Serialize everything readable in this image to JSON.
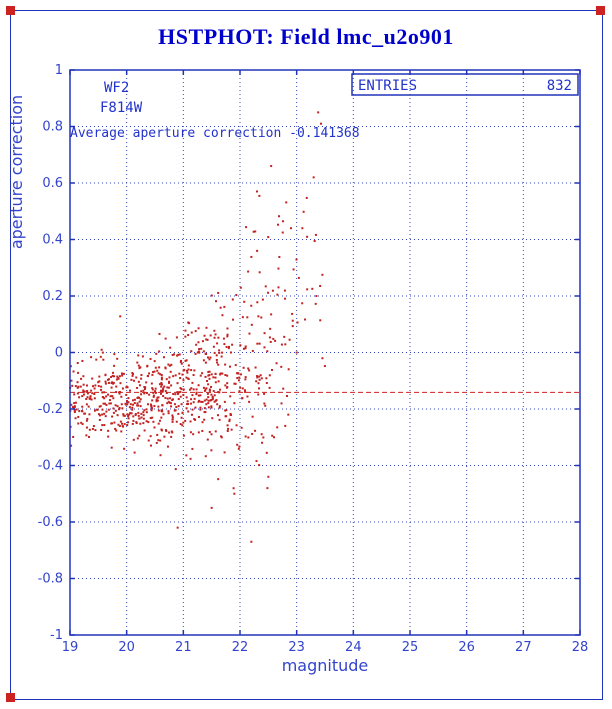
{
  "window": {
    "background": "#ffffff",
    "frame_color": "#2233bb",
    "handle_color": "#cc2222"
  },
  "title": "HSTPHOT: Field lmc_u2o901",
  "annotations": {
    "camera": "WF2",
    "filter": "F814W",
    "average_label": "Average aperture correction -0.141368"
  },
  "entries_box": {
    "label": "ENTRIES",
    "value": "832"
  },
  "colors": {
    "title": "#0000cc",
    "axis_frame": "#2233bb",
    "grid": "#3344bb",
    "tick_text": "#3344cc",
    "annotation_text": "#2233cc",
    "points": "#c22222",
    "avg_line": "#cc2222"
  },
  "chart_data": {
    "type": "scatter",
    "title": "HSTPHOT: Field lmc_u2o901",
    "xlabel": "magnitude",
    "ylabel": "aperture correction",
    "xlim": [
      19,
      28
    ],
    "ylim": [
      -1,
      1
    ],
    "x_ticks": [
      19,
      20,
      21,
      22,
      23,
      24,
      25,
      26,
      27,
      28
    ],
    "y_ticks": [
      -1,
      -0.8,
      -0.6,
      -0.4,
      -0.2,
      0,
      0.2,
      0.4,
      0.6,
      0.8,
      1
    ],
    "grid": true,
    "legend": "none",
    "n_points": 832,
    "average_aperture_correction": -0.141368,
    "average_line_y": -0.141368,
    "scatter_summary": "832 stars spanning magnitude 19 to ~23.5; aperture correction tightly clustered near -0.15 for bright stars, with scatter growing toward faint magnitudes, reaching ~+0.85 near magnitude 23.4 and a low outlier near -0.67 at magnitude 22.2",
    "point_seed": 42,
    "clusters": [
      {
        "x_min": 19.0,
        "x_max": 19.5,
        "count": 85,
        "y_mean": -0.17,
        "y_sd": 0.07
      },
      {
        "x_min": 19.5,
        "x_max": 20.0,
        "count": 110,
        "y_mean": -0.165,
        "y_sd": 0.075
      },
      {
        "x_min": 20.0,
        "x_max": 20.5,
        "count": 120,
        "y_mean": -0.16,
        "y_sd": 0.08
      },
      {
        "x_min": 20.5,
        "x_max": 21.0,
        "count": 135,
        "y_mean": -0.15,
        "y_sd": 0.09
      },
      {
        "x_min": 21.0,
        "x_max": 21.5,
        "count": 130,
        "y_mean": -0.13,
        "y_sd": 0.11
      },
      {
        "x_min": 21.5,
        "x_max": 22.0,
        "count": 105,
        "y_mean": -0.1,
        "y_sd": 0.14
      },
      {
        "x_min": 22.0,
        "x_max": 22.5,
        "count": 75,
        "y_mean": -0.02,
        "y_sd": 0.2
      },
      {
        "x_min": 22.5,
        "x_max": 23.0,
        "count": 40,
        "y_mean": 0.08,
        "y_sd": 0.24
      },
      {
        "x_min": 23.0,
        "x_max": 23.5,
        "count": 18,
        "y_mean": 0.25,
        "y_sd": 0.22
      }
    ],
    "outlier_points": [
      [
        23.38,
        0.85
      ],
      [
        23.43,
        0.81
      ],
      [
        23.3,
        0.62
      ],
      [
        22.55,
        0.66
      ],
      [
        22.3,
        0.57
      ],
      [
        22.2,
        -0.67
      ],
      [
        22.5,
        -0.44
      ],
      [
        22.9,
        0.44
      ],
      [
        23.1,
        0.44
      ],
      [
        21.9,
        -0.5
      ],
      [
        21.5,
        -0.55
      ],
      [
        20.9,
        -0.62
      ],
      [
        22.6,
        -0.3
      ],
      [
        23.0,
        0.0
      ]
    ]
  }
}
